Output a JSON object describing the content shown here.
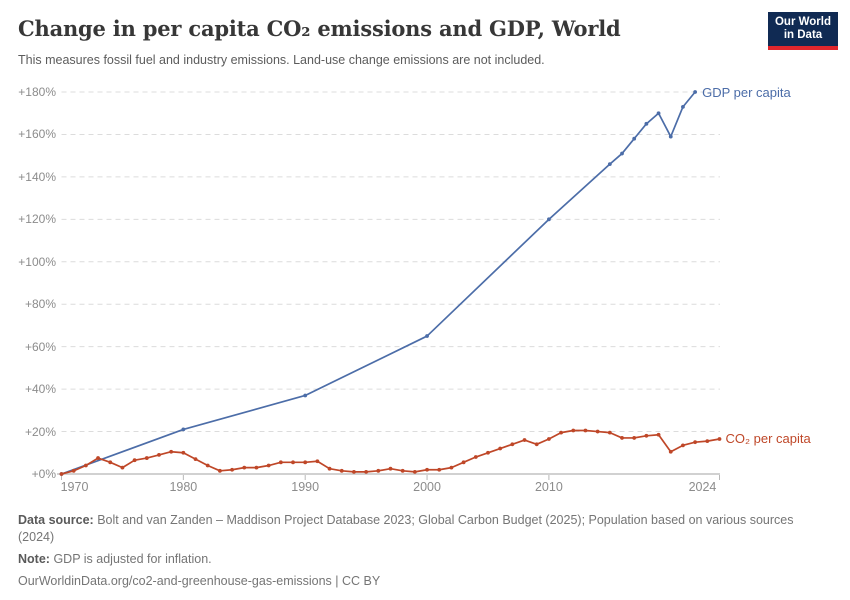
{
  "header": {
    "title": "Change in per capita CO₂ emissions and GDP, World",
    "subtitle": "This measures fossil fuel and industry emissions. Land-use change emissions are not included.",
    "logo": {
      "line1": "Our World",
      "line2": "in Data"
    }
  },
  "chart_data": {
    "type": "line",
    "title": "Change in per capita CO₂ emissions and GDP, World",
    "xlabel": "",
    "ylabel": "",
    "xlim": [
      1970,
      2024
    ],
    "ylim": [
      0,
      180
    ],
    "grid": "horizontal-dashed",
    "legend_position": "end-of-line-labels",
    "x_ticks": [
      {
        "year": 1970,
        "label": "1970",
        "offset": 13
      },
      {
        "year": 1980,
        "label": "1980",
        "offset": 0
      },
      {
        "year": 1990,
        "label": "1990",
        "offset": 0
      },
      {
        "year": 2000,
        "label": "2000",
        "offset": 0
      },
      {
        "year": 2010,
        "label": "2010",
        "offset": 0
      },
      {
        "year": 2024,
        "label": "2024",
        "offset": -17
      }
    ],
    "y_ticks": [
      {
        "value": 0,
        "label": "+0%"
      },
      {
        "value": 20,
        "label": "+20%"
      },
      {
        "value": 40,
        "label": "+40%"
      },
      {
        "value": 60,
        "label": "+60%"
      },
      {
        "value": 80,
        "label": "+80%"
      },
      {
        "value": 100,
        "label": "+100%"
      },
      {
        "value": 120,
        "label": "+120%"
      },
      {
        "value": 140,
        "label": "+140%"
      },
      {
        "value": 160,
        "label": "+160%"
      },
      {
        "value": 180,
        "label": "+180%"
      }
    ],
    "series": [
      {
        "id": "gdp",
        "name": "GDP per capita",
        "color": "#4c6da8",
        "unit": "% change",
        "points": [
          [
            1970,
            0
          ],
          [
            1980,
            21
          ],
          [
            1990,
            37
          ],
          [
            2000,
            65
          ],
          [
            2010,
            120
          ],
          [
            2015,
            146
          ],
          [
            2016,
            151
          ],
          [
            2017,
            158
          ],
          [
            2018,
            165
          ],
          [
            2019,
            170
          ],
          [
            2020,
            159
          ],
          [
            2021,
            173
          ],
          [
            2022,
            180
          ]
        ]
      },
      {
        "id": "co2",
        "name": "CO₂ per capita",
        "color": "#bf4728",
        "unit": "% change",
        "points": [
          [
            1970,
            0
          ],
          [
            1971,
            1.5
          ],
          [
            1972,
            4
          ],
          [
            1973,
            7.5
          ],
          [
            1974,
            5.5
          ],
          [
            1975,
            3
          ],
          [
            1976,
            6.5
          ],
          [
            1977,
            7.5
          ],
          [
            1978,
            9
          ],
          [
            1979,
            10.5
          ],
          [
            1980,
            10
          ],
          [
            1981,
            7
          ],
          [
            1982,
            4
          ],
          [
            1983,
            1.5
          ],
          [
            1984,
            2
          ],
          [
            1985,
            3
          ],
          [
            1986,
            3
          ],
          [
            1987,
            4
          ],
          [
            1988,
            5.5
          ],
          [
            1989,
            5.5
          ],
          [
            1990,
            5.5
          ],
          [
            1991,
            6
          ],
          [
            1992,
            2.5
          ],
          [
            1993,
            1.5
          ],
          [
            1994,
            1
          ],
          [
            1995,
            1
          ],
          [
            1996,
            1.5
          ],
          [
            1997,
            2.5
          ],
          [
            1998,
            1.5
          ],
          [
            1999,
            1
          ],
          [
            2000,
            2
          ],
          [
            2001,
            2
          ],
          [
            2002,
            3
          ],
          [
            2003,
            5.5
          ],
          [
            2004,
            8
          ],
          [
            2005,
            10
          ],
          [
            2006,
            12
          ],
          [
            2007,
            14
          ],
          [
            2008,
            16
          ],
          [
            2009,
            14
          ],
          [
            2010,
            16.5
          ],
          [
            2011,
            19.5
          ],
          [
            2012,
            20.5
          ],
          [
            2013,
            20.5
          ],
          [
            2014,
            20
          ],
          [
            2015,
            19.5
          ],
          [
            2016,
            17
          ],
          [
            2017,
            17
          ],
          [
            2018,
            18
          ],
          [
            2019,
            18.5
          ],
          [
            2020,
            10.5
          ],
          [
            2021,
            13.5
          ],
          [
            2022,
            15
          ],
          [
            2023,
            15.5
          ],
          [
            2024,
            16.5
          ]
        ]
      }
    ]
  },
  "footer": {
    "datasource_label": "Data source:",
    "datasource_text": "Bolt and van Zanden – Maddison Project Database 2023; Global Carbon Budget (2025); Population based on various sources",
    "datasource_text2": "(2024)",
    "note_label": "Note:",
    "note_text": "GDP is adjusted for inflation.",
    "source_url": "OurWorldinData.org/co2-and-greenhouse-gas-emissions | CC BY"
  }
}
